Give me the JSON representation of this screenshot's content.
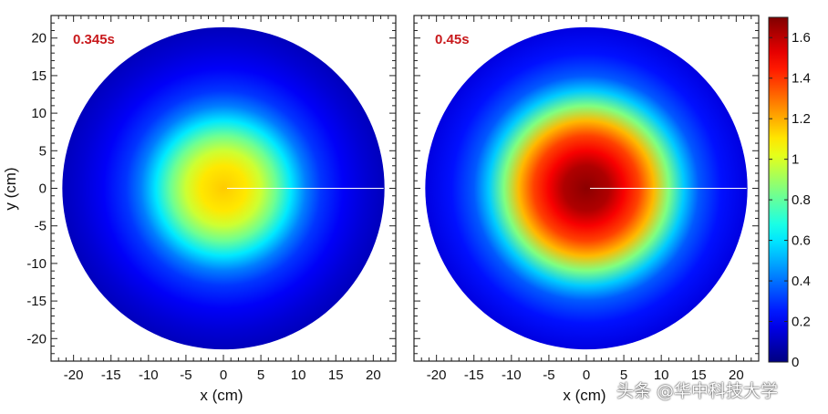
{
  "chart_data": {
    "type": "heatmap",
    "colormap": "jet",
    "colorbar": {
      "range": [
        0,
        1.7
      ],
      "ticks": [
        "0",
        "0.2",
        "0.4",
        "0.6",
        "0.8",
        "1",
        "1.2",
        "1.4",
        "1.6"
      ],
      "tick_values": [
        0,
        0.2,
        0.4,
        0.6,
        0.8,
        1.0,
        1.2,
        1.4,
        1.6
      ]
    },
    "shared_axes": {
      "xlabel": "x (cm)",
      "ylabel": "y (cm)",
      "xlim": [
        -23,
        23
      ],
      "ylim": [
        -23,
        23
      ],
      "x_ticks": [
        -20,
        -15,
        -10,
        -5,
        0,
        5,
        10,
        15,
        20
      ],
      "y_ticks": [
        -20,
        -15,
        -10,
        -5,
        0,
        5,
        10,
        15,
        20
      ],
      "x_tick_labels": [
        "-20",
        "-15",
        "-10",
        "-5",
        "0",
        "5",
        "10",
        "15",
        "20"
      ],
      "y_tick_labels": [
        "-20",
        "-15",
        "-10",
        "-5",
        "0",
        "5",
        "10",
        "15",
        "20"
      ]
    },
    "panels": [
      {
        "label": "0.345s",
        "domain_radius": 21.5,
        "profile": [
          {
            "r": 0,
            "value": 1.15
          },
          {
            "r": 3,
            "value": 1.1
          },
          {
            "r": 5,
            "value": 0.98
          },
          {
            "r": 7,
            "value": 0.82
          },
          {
            "r": 9,
            "value": 0.6
          },
          {
            "r": 11,
            "value": 0.42
          },
          {
            "r": 13,
            "value": 0.3
          },
          {
            "r": 16,
            "value": 0.2
          },
          {
            "r": 19,
            "value": 0.14
          },
          {
            "r": 21.5,
            "value": 0.1
          }
        ]
      },
      {
        "label": "0.45s",
        "domain_radius": 21.5,
        "profile": [
          {
            "r": 0,
            "value": 1.68
          },
          {
            "r": 3,
            "value": 1.62
          },
          {
            "r": 5,
            "value": 1.5
          },
          {
            "r": 7,
            "value": 1.38
          },
          {
            "r": 9,
            "value": 1.18
          },
          {
            "r": 11,
            "value": 0.85
          },
          {
            "r": 13,
            "value": 0.55
          },
          {
            "r": 15,
            "value": 0.36
          },
          {
            "r": 18,
            "value": 0.24
          },
          {
            "r": 21.5,
            "value": 0.16
          }
        ]
      }
    ]
  },
  "watermark": "头条 @华中科技大学"
}
